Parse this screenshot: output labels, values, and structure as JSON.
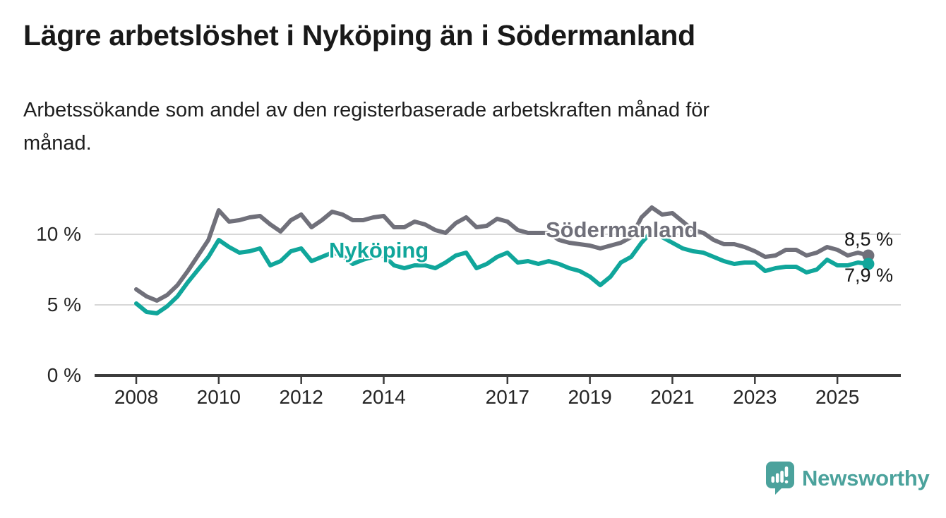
{
  "header": {
    "title": "Lägre arbetslöshet i Nyköping än i Södermanland",
    "subtitle": "Arbetssökande som andel av den registerbaserade arbetskraften månad för\nmånad."
  },
  "chart_data": {
    "type": "line",
    "title": "Lägre arbetslöshet i Nyköping än i Södermanland",
    "subtitle": "Arbetssökande som andel av den registerbaserade arbetskraften månad för månad.",
    "xlabel": "",
    "ylabel": "",
    "xlim": [
      2007.9,
      2026.3
    ],
    "ylim": [
      0,
      12.5
    ],
    "grid": "horizontal",
    "legend_position": "inline-labels-on-lines",
    "x_ticks": [
      2008,
      2010,
      2012,
      2014,
      2017,
      2019,
      2021,
      2023,
      2025
    ],
    "y_ticks": [
      {
        "value": 0,
        "label": "0 %"
      },
      {
        "value": 5,
        "label": "5 %"
      },
      {
        "value": 10,
        "label": "10 %"
      }
    ],
    "series": [
      {
        "name": "Södermanland",
        "color": "#70707a",
        "end_label": "8,5 %",
        "end_value": 8.5,
        "x": [
          2008,
          2008.25,
          2008.5,
          2008.75,
          2009,
          2009.25,
          2009.5,
          2009.75,
          2010,
          2010.25,
          2010.5,
          2010.75,
          2011,
          2011.25,
          2011.5,
          2011.75,
          2012,
          2012.25,
          2012.5,
          2012.75,
          2013,
          2013.25,
          2013.5,
          2013.75,
          2014,
          2014.25,
          2014.5,
          2014.75,
          2015,
          2015.25,
          2015.5,
          2015.75,
          2016,
          2016.25,
          2016.5,
          2016.75,
          2017,
          2017.25,
          2017.5,
          2017.75,
          2018,
          2018.25,
          2018.5,
          2018.75,
          2019,
          2019.25,
          2019.5,
          2019.75,
          2020,
          2020.25,
          2020.5,
          2020.75,
          2021,
          2021.25,
          2021.5,
          2021.75,
          2022,
          2022.25,
          2022.5,
          2022.75,
          2023,
          2023.25,
          2023.5,
          2023.75,
          2024,
          2024.25,
          2024.5,
          2024.75,
          2025,
          2025.25,
          2025.5,
          2025.75
        ],
        "values": [
          6.1,
          5.6,
          5.3,
          5.7,
          6.4,
          7.4,
          8.5,
          9.6,
          11.7,
          10.9,
          11.0,
          11.2,
          11.3,
          10.7,
          10.2,
          11.0,
          11.4,
          10.5,
          11.0,
          11.6,
          11.4,
          11.0,
          11.0,
          11.2,
          11.3,
          10.5,
          10.5,
          10.9,
          10.7,
          10.3,
          10.1,
          10.8,
          11.2,
          10.5,
          10.6,
          11.1,
          10.9,
          10.3,
          10.1,
          10.1,
          10.1,
          9.6,
          9.4,
          9.3,
          9.2,
          9.0,
          9.2,
          9.4,
          9.8,
          11.2,
          11.9,
          11.4,
          11.5,
          10.9,
          10.3,
          10.1,
          9.6,
          9.3,
          9.3,
          9.1,
          8.8,
          8.4,
          8.5,
          8.9,
          8.9,
          8.5,
          8.7,
          9.1,
          8.9,
          8.5,
          8.7,
          8.5
        ]
      },
      {
        "name": "Nyköping",
        "color": "#10a69b",
        "end_label": "7,9 %",
        "end_value": 7.9,
        "x": [
          2008,
          2008.25,
          2008.5,
          2008.75,
          2009,
          2009.25,
          2009.5,
          2009.75,
          2010,
          2010.25,
          2010.5,
          2010.75,
          2011,
          2011.25,
          2011.5,
          2011.75,
          2012,
          2012.25,
          2012.5,
          2012.75,
          2013,
          2013.25,
          2013.5,
          2013.75,
          2014,
          2014.25,
          2014.5,
          2014.75,
          2015,
          2015.25,
          2015.5,
          2015.75,
          2016,
          2016.25,
          2016.5,
          2016.75,
          2017,
          2017.25,
          2017.5,
          2017.75,
          2018,
          2018.25,
          2018.5,
          2018.75,
          2019,
          2019.25,
          2019.5,
          2019.75,
          2020,
          2020.25,
          2020.5,
          2020.75,
          2021,
          2021.25,
          2021.5,
          2021.75,
          2022,
          2022.25,
          2022.5,
          2022.75,
          2023,
          2023.25,
          2023.5,
          2023.75,
          2024,
          2024.25,
          2024.5,
          2024.75,
          2025,
          2025.25,
          2025.5,
          2025.75
        ],
        "values": [
          5.1,
          4.5,
          4.4,
          4.9,
          5.6,
          6.6,
          7.5,
          8.4,
          9.6,
          9.1,
          8.7,
          8.8,
          9.0,
          7.8,
          8.1,
          8.8,
          9.0,
          8.1,
          8.4,
          8.7,
          8.5,
          7.9,
          8.2,
          8.4,
          8.5,
          7.8,
          7.6,
          7.8,
          7.8,
          7.6,
          8.0,
          8.5,
          8.7,
          7.6,
          7.9,
          8.4,
          8.7,
          8.0,
          8.1,
          7.9,
          8.1,
          7.9,
          7.6,
          7.4,
          7.0,
          6.4,
          7.0,
          8.0,
          8.4,
          9.4,
          10.2,
          9.8,
          9.4,
          9.0,
          8.8,
          8.7,
          8.4,
          8.1,
          7.9,
          8.0,
          8.0,
          7.4,
          7.6,
          7.7,
          7.7,
          7.3,
          7.5,
          8.2,
          7.8,
          7.8,
          8.0,
          7.9
        ]
      }
    ]
  },
  "colors": {
    "background": "#ffffff",
    "title_text": "#191919",
    "axis_text": "#252525",
    "axis_line": "#3c3c3c",
    "gridline": "#d7d7d7",
    "sodermanland_line": "#70707a",
    "nykoping_line": "#10a69b",
    "logo_teal": "#4ba29c"
  },
  "branding": {
    "logo_text": "Newsworthy",
    "logo_icon": "speech-bubble-bar-chart-icon"
  }
}
